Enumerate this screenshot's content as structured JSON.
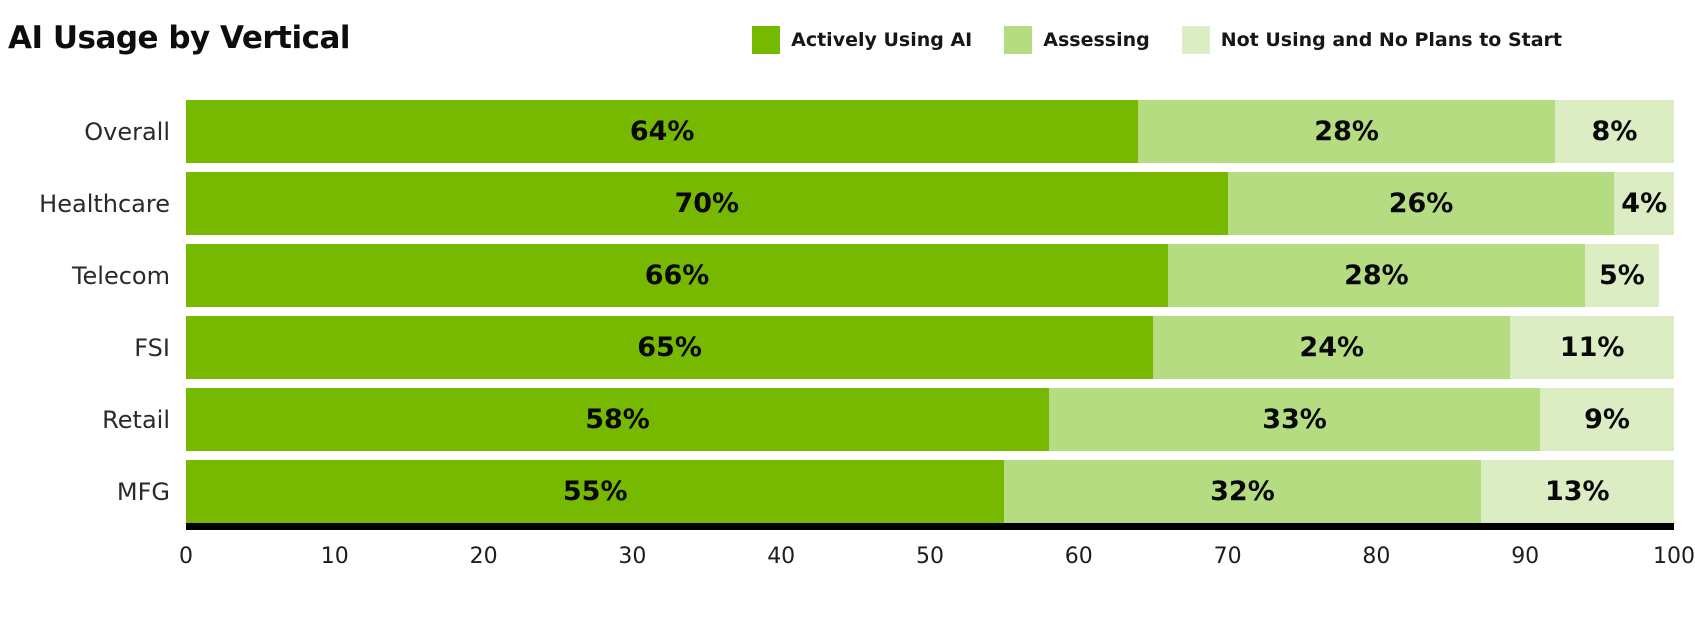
{
  "title": "AI Usage by Vertical",
  "legend": [
    {
      "label": "Actively Using AI",
      "color": "#76B900"
    },
    {
      "label": "Assessing",
      "color": "#B6DC82"
    },
    {
      "label": "Not Using and No Plans to Start",
      "color": "#DCEDC4"
    }
  ],
  "colors": {
    "actively_using": "#76B900",
    "assessing": "#B6DC82",
    "not_using": "#DCEDC4",
    "axis_line": "#000000",
    "background": "#FFFFFF",
    "text": "#0D0D0D"
  },
  "chart_data": {
    "type": "bar",
    "orientation": "horizontal",
    "stacked": true,
    "title": "AI Usage by Vertical",
    "categories": [
      "Overall",
      "Healthcare",
      "Telecom",
      "FSI",
      "Retail",
      "MFG"
    ],
    "series": [
      {
        "name": "Actively Using AI",
        "color": "#76B900",
        "values": [
          64,
          70,
          66,
          65,
          58,
          55
        ]
      },
      {
        "name": "Assessing",
        "color": "#B6DC82",
        "values": [
          28,
          26,
          28,
          24,
          33,
          32
        ]
      },
      {
        "name": "Not Using and No Plans to Start",
        "color": "#DCEDC4",
        "values": [
          8,
          4,
          5,
          11,
          9,
          13
        ]
      }
    ],
    "value_suffix": "%",
    "data_labels": true,
    "xlabel": "",
    "ylabel": "",
    "xlim": [
      0,
      100
    ],
    "x_ticks": [
      0,
      10,
      20,
      30,
      40,
      50,
      60,
      70,
      80,
      90,
      100
    ],
    "grid": false,
    "legend_position": "top-right"
  }
}
